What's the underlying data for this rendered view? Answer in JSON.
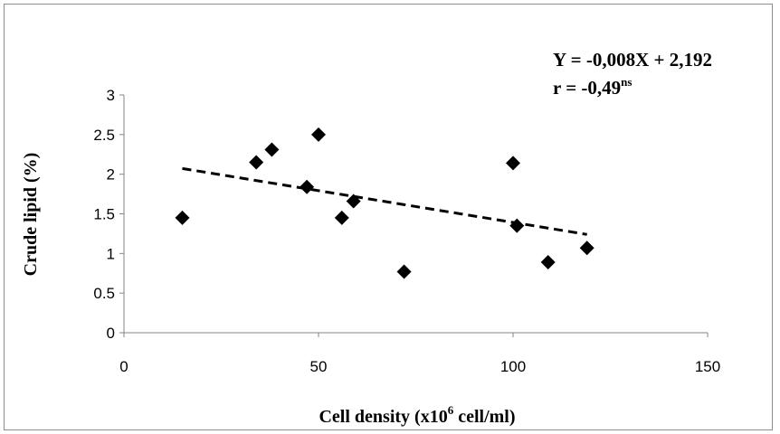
{
  "chart_data": {
    "type": "scatter",
    "xlabel_main": "Cell density (x10",
    "xlabel_sup": "6",
    "xlabel_tail": " cell/ml)",
    "ylabel": "Crude lipid (%)",
    "xlim": [
      0,
      150
    ],
    "ylim": [
      0,
      3
    ],
    "x_ticks": [
      "0",
      "50",
      "100",
      "150"
    ],
    "y_ticks": [
      "0",
      "0.5",
      "1",
      "1.5",
      "2",
      "2.5",
      "3"
    ],
    "grid": false,
    "points": [
      {
        "x": 15,
        "y": 1.45
      },
      {
        "x": 34,
        "y": 2.15
      },
      {
        "x": 38,
        "y": 2.31
      },
      {
        "x": 47,
        "y": 1.84
      },
      {
        "x": 50,
        "y": 2.5
      },
      {
        "x": 56,
        "y": 1.45
      },
      {
        "x": 59,
        "y": 1.66
      },
      {
        "x": 72,
        "y": 0.77
      },
      {
        "x": 100,
        "y": 2.14
      },
      {
        "x": 101,
        "y": 1.35
      },
      {
        "x": 109,
        "y": 0.89
      },
      {
        "x": 119,
        "y": 1.07
      }
    ],
    "trendline": {
      "x_start": 15,
      "x_end": 119,
      "slope": -0.008,
      "intercept": 2.192,
      "style": "dashed"
    },
    "annotation": {
      "equation": "Y = -0,008X + 2,192",
      "r_text": "r = -0,49",
      "r_sup": "ns"
    },
    "marker_color": "#000000"
  }
}
